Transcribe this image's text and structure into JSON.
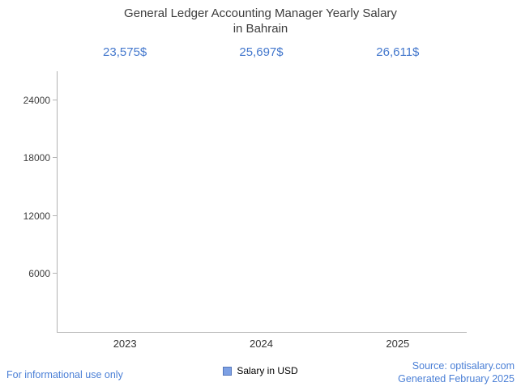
{
  "title": {
    "line1": "General Ledger Accounting Manager Yearly Salary",
    "line2": "in Bahrain"
  },
  "chart_data": {
    "type": "bar",
    "title": "General Ledger Accounting Manager Yearly Salary in Bahrain",
    "categories": [
      "2023",
      "2024",
      "2025"
    ],
    "values": [
      23575,
      25697,
      26611
    ],
    "value_labels": [
      "23,575$",
      "25,697$",
      "26,611$"
    ],
    "series_name": "Salary in USD",
    "yticks": [
      6000,
      12000,
      18000,
      24000
    ],
    "ylim": [
      0,
      27000
    ],
    "xlabel": "",
    "ylabel": "",
    "grid": false,
    "legend_position": "bottom"
  },
  "legend": {
    "label": "Salary in USD"
  },
  "footer": {
    "left": "For informational use only",
    "source": "Source: optisalary.com",
    "generated": "Generated February 2025"
  },
  "colors": {
    "bar_edge": "#8fb0ea",
    "bar_center": "#ffffff",
    "value_label": "#4478cd",
    "footer_text": "#4a7fd6",
    "axis": "#b3b3b3",
    "title_text": "#3d3d3d",
    "legend_swatch": "#7da0e4"
  }
}
